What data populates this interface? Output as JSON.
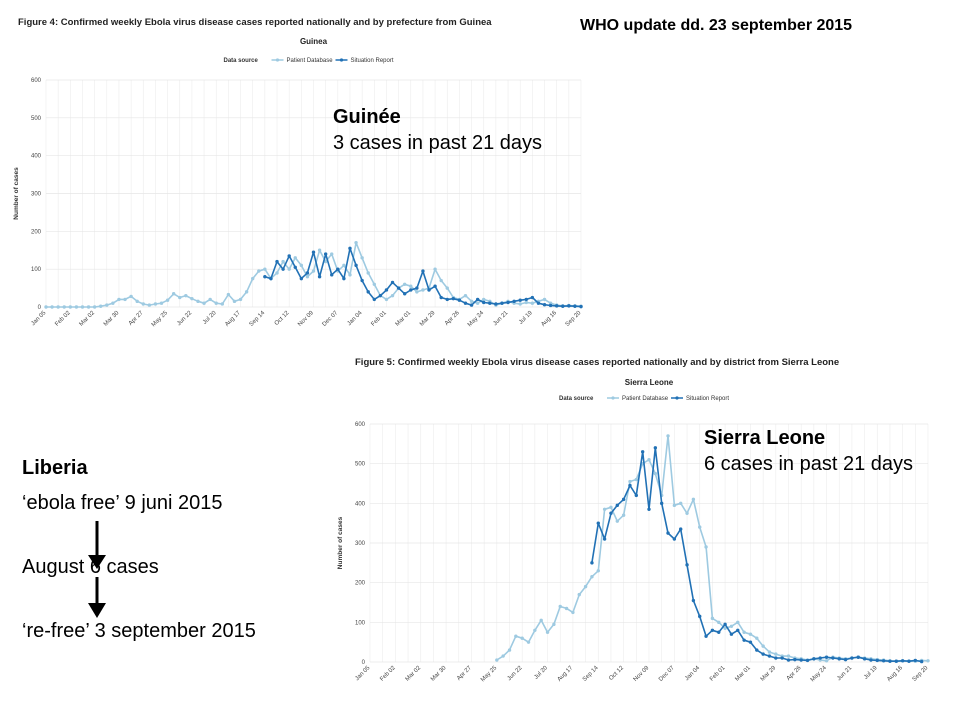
{
  "header": {
    "who_update": "WHO update dd. 23 september 2015"
  },
  "guinea": {
    "figure_caption": "Figure 4: Confirmed weekly Ebola virus disease cases reported nationally and by prefecture from Guinea",
    "annotation": {
      "title": "Guinée",
      "text": "3 cases in past 21 days"
    }
  },
  "sierra_leone": {
    "figure_caption": "Figure 5: Confirmed weekly Ebola virus disease cases reported nationally and by district from Sierra Leone",
    "annotation": {
      "title": "Sierra Leone",
      "text": "6 cases in past 21 days"
    }
  },
  "liberia": {
    "title": "Liberia",
    "line1": "‘ebola free’ 9 juni 2015",
    "line2": "August 6 cases",
    "line3": "‘re-free’ 3 september 2015"
  },
  "colors": {
    "patient_database": "#9ecae1",
    "situation_report": "#2171b5",
    "arrow": "#000000"
  },
  "chart_data": [
    {
      "id": "guinea",
      "type": "line",
      "title": "Guinea",
      "ylabel": "Number of cases",
      "legend": {
        "title": "Data source",
        "placement": "top-center",
        "entries": [
          "Patient Database",
          "Situation Report"
        ]
      },
      "ylim": [
        0,
        600
      ],
      "yticks": [
        0,
        100,
        200,
        300,
        400,
        500,
        600
      ],
      "x_tick_labels": [
        "Jan 05",
        "Feb 02",
        "Mar 02",
        "Mar 30",
        "Apr 27",
        "May 25",
        "Jun 22",
        "Jul 20",
        "Aug 17",
        "Sep 14",
        "Oct 12",
        "Nov 09",
        "Dec 07",
        "Jan 04",
        "Feb 01",
        "Mar 01",
        "Mar 29",
        "Apr 26",
        "May 24",
        "Jun 21",
        "Jul 19",
        "Aug 16",
        "Sep 20"
      ],
      "week_count": 89,
      "series": [
        {
          "name": "Patient Database",
          "start_week": 0,
          "values": [
            0,
            0,
            0,
            0,
            0,
            0,
            0,
            0,
            0,
            2,
            5,
            10,
            20,
            20,
            28,
            15,
            8,
            5,
            8,
            10,
            18,
            35,
            25,
            30,
            22,
            15,
            10,
            20,
            10,
            8,
            33,
            15,
            20,
            40,
            75,
            95,
            100,
            75,
            90,
            120,
            100,
            130,
            110,
            80,
            95,
            150,
            120,
            140,
            95,
            110,
            85,
            170,
            130,
            90,
            60,
            30,
            20,
            30,
            50,
            60,
            55,
            40,
            45,
            50,
            100,
            70,
            50,
            25,
            20,
            30,
            15,
            10,
            20,
            15,
            5,
            10,
            15,
            10,
            8,
            12,
            10,
            15,
            20,
            10,
            5,
            3,
            4,
            3,
            2
          ]
        },
        {
          "name": "Situation Report",
          "start_week": 36,
          "values": [
            80,
            75,
            120,
            100,
            135,
            105,
            75,
            90,
            145,
            80,
            140,
            85,
            100,
            75,
            155,
            110,
            70,
            40,
            20,
            30,
            45,
            65,
            50,
            35,
            45,
            50,
            95,
            45,
            55,
            25,
            20,
            22,
            18,
            10,
            5,
            20,
            12,
            10,
            8,
            10,
            12,
            15,
            18,
            20,
            25,
            10,
            6,
            4,
            3,
            2,
            3,
            2,
            1
          ]
        }
      ]
    },
    {
      "id": "sierra_leone",
      "type": "line",
      "title": "Sierra Leone",
      "ylabel": "Number of cases",
      "legend": {
        "title": "Data source",
        "placement": "top-center",
        "entries": [
          "Patient Database",
          "Situation Report"
        ]
      },
      "ylim": [
        0,
        600
      ],
      "yticks": [
        0,
        100,
        200,
        300,
        400,
        500,
        600
      ],
      "x_tick_labels": [
        "Jan 05",
        "Feb 02",
        "Mar 02",
        "Mar 30",
        "Apr 27",
        "May 25",
        "Jun 22",
        "Jul 20",
        "Aug 17",
        "Sep 14",
        "Oct 12",
        "Nov 09",
        "Dec 07",
        "Jan 04",
        "Feb 01",
        "Mar 01",
        "Mar 29",
        "Apr 26",
        "May 24",
        "Jun 21",
        "Jul 19",
        "Aug 16",
        "Sep 20"
      ],
      "week_count": 89,
      "series": [
        {
          "name": "Patient Database",
          "start_week": 20,
          "values": [
            5,
            15,
            30,
            65,
            60,
            50,
            80,
            105,
            75,
            95,
            140,
            135,
            125,
            170,
            190,
            215,
            230,
            385,
            390,
            355,
            370,
            455,
            460,
            500,
            510,
            475,
            420,
            570,
            395,
            400,
            375,
            410,
            340,
            290,
            110,
            100,
            85,
            90,
            100,
            75,
            70,
            60,
            40,
            25,
            20,
            15,
            15,
            10,
            8,
            5,
            8,
            5,
            3,
            12,
            10,
            8,
            10,
            12,
            10,
            8,
            6,
            5,
            3,
            2,
            3,
            2,
            2,
            4,
            3
          ]
        },
        {
          "name": "Situation Report",
          "start_week": 35,
          "values": [
            250,
            350,
            310,
            375,
            395,
            410,
            445,
            420,
            530,
            385,
            540,
            400,
            325,
            310,
            335,
            245,
            155,
            115,
            65,
            80,
            75,
            95,
            70,
            80,
            55,
            50,
            30,
            20,
            15,
            10,
            10,
            5,
            6,
            5,
            4,
            8,
            10,
            12,
            10,
            8,
            6,
            10,
            12,
            8,
            5,
            4,
            3,
            2,
            2,
            3,
            2,
            4,
            1
          ]
        }
      ]
    }
  ]
}
